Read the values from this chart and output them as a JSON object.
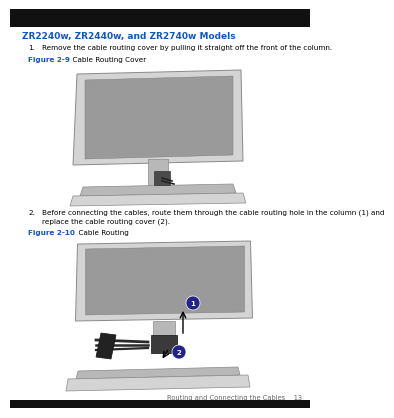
{
  "bg_color": "#ffffff",
  "bottom_bar_color": "#111111",
  "title_text": "ZR2240w, ZR2440w, and ZR2740w Models",
  "title_color": "#1155cc",
  "title_fontsize": 6.5,
  "step1_num": "1.",
  "step1_text": "Remove the cable routing cover by pulling it straight off the front of the column.",
  "fig1_bold": "Figure 2-9",
  "fig1_rest": "  Cable Routing Cover",
  "fig_label_color": "#1155cc",
  "step2_num": "2.",
  "step2_line1": "Before connecting the cables, route them through the cable routing hole in the column (1) and",
  "step2_line2": "replace the cable routing cover (2).",
  "fig2_bold": "Figure 2-10",
  "fig2_rest": "  Cable Routing",
  "footer_text": "Routing and Connecting the Cables    13",
  "footer_color": "#666666",
  "footer_fontsize": 4.8,
  "body_fontsize": 5.2,
  "fig_label_fontsize": 5.2,
  "num_fontsize": 5.2,
  "top_bar_color": "#111111",
  "top_bar_height": 0.045,
  "monitor_gray_light": "#d4d4d4",
  "monitor_gray_mid": "#b8b8b8",
  "monitor_gray_dark": "#8a8a8a",
  "monitor_screen_dark": "#9a9a9a",
  "cable_color": "#2a2a2a",
  "label_num_color": "#000000",
  "label_circle_color": "#222288"
}
